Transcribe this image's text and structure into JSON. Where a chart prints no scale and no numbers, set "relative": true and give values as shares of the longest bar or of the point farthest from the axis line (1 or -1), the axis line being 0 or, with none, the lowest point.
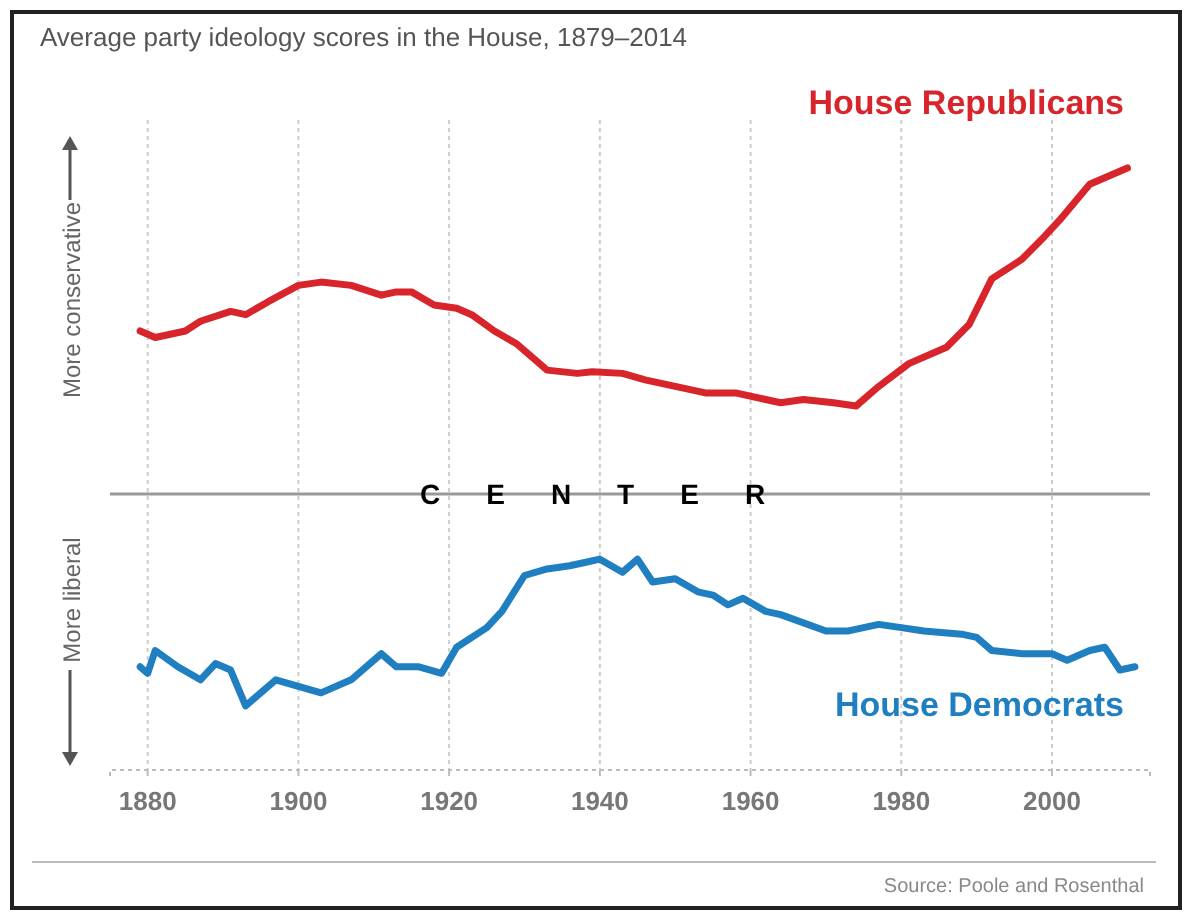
{
  "chart_data": {
    "type": "line",
    "title": "Average party ideology scores in the House, 1879–2014",
    "relative": true,
    "grid": "x",
    "marker": "none",
    "line_style": "solid",
    "xlim": [
      1875,
      2013
    ],
    "xticks": [
      1880,
      1900,
      1920,
      1940,
      1960,
      1980,
      2000
    ],
    "ref_lines": [
      {
        "axis": "y",
        "value": 0,
        "label": "CENTER",
        "color": "#999999"
      }
    ],
    "annotations": [
      "More conservative",
      "More liberal",
      "Source: Poole and Rosenthal"
    ],
    "series": [
      {
        "name": "House Republicans",
        "color": "#d7252b",
        "x": [
          1879,
          1881,
          1885,
          1887,
          1891,
          1893,
          1896,
          1900,
          1903,
          1907,
          1911,
          1913,
          1915,
          1918,
          1921,
          1923,
          1926,
          1929,
          1933,
          1937,
          1939,
          1943,
          1946,
          1950,
          1954,
          1958,
          1962,
          1964,
          1967,
          1971,
          1974,
          1977,
          1981,
          1986,
          1989,
          1992,
          1996,
          1999,
          2001,
          2005,
          2010
        ],
        "values": [
          0.5,
          0.48,
          0.5,
          0.53,
          0.56,
          0.55,
          0.59,
          0.64,
          0.65,
          0.64,
          0.61,
          0.62,
          0.62,
          0.58,
          0.57,
          0.55,
          0.5,
          0.46,
          0.38,
          0.37,
          0.375,
          0.37,
          0.35,
          0.33,
          0.31,
          0.31,
          0.29,
          0.28,
          0.29,
          0.28,
          0.27,
          0.33,
          0.4,
          0.45,
          0.52,
          0.66,
          0.72,
          0.79,
          0.84,
          0.95,
          1
        ]
      },
      {
        "name": "House Democrats",
        "color": "#1f7fc1",
        "x": [
          1879,
          1880,
          1881,
          1884,
          1887,
          1889,
          1891,
          1893,
          1897,
          1900,
          1903,
          1907,
          1911,
          1913,
          1916,
          1919,
          1921,
          1925,
          1927,
          1930,
          1933,
          1936,
          1938,
          1940,
          1943,
          1945,
          1947,
          1950,
          1953,
          1955,
          1957,
          1959,
          1962,
          1964,
          1970,
          1973,
          1977,
          1980,
          1983,
          1988,
          1990,
          1992,
          1996,
          2000,
          2002,
          2005,
          2007,
          2009,
          2011
        ],
        "values": [
          -0.53,
          -0.55,
          -0.48,
          -0.53,
          -0.57,
          -0.52,
          -0.54,
          -0.65,
          -0.57,
          -0.59,
          -0.61,
          -0.57,
          -0.49,
          -0.53,
          -0.53,
          -0.55,
          -0.47,
          -0.41,
          -0.36,
          -0.25,
          -0.23,
          -0.22,
          -0.21,
          -0.2,
          -0.24,
          -0.2,
          -0.27,
          -0.26,
          -0.3,
          -0.31,
          -0.34,
          -0.32,
          -0.36,
          -0.37,
          -0.42,
          -0.42,
          -0.4,
          -0.41,
          -0.42,
          -0.43,
          -0.44,
          -0.48,
          -0.49,
          -0.49,
          -0.51,
          -0.48,
          -0.47,
          -0.54,
          -0.53
        ]
      }
    ]
  }
}
